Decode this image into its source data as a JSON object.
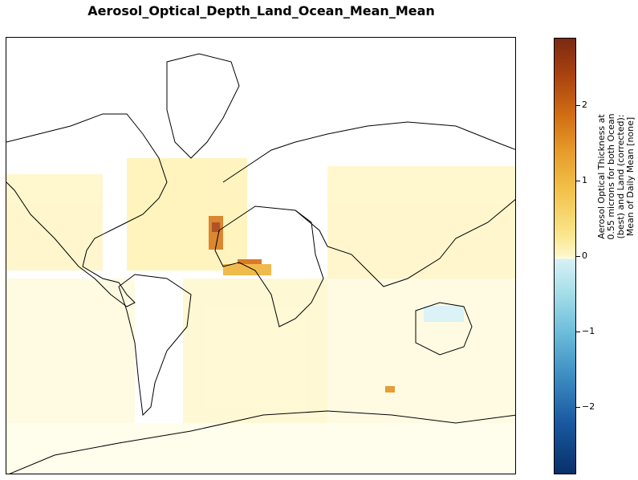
{
  "title": "Aerosol_Optical_Depth_Land_Ocean_Mean_Mean",
  "colorbar": {
    "ticks": [
      {
        "value": 2,
        "label": "2"
      },
      {
        "value": 1,
        "label": "1"
      },
      {
        "value": 0,
        "label": "0"
      },
      {
        "value": -1,
        "label": "−1"
      },
      {
        "value": -2,
        "label": "−2"
      }
    ],
    "range": [
      -2.9,
      2.9
    ],
    "label_lines": [
      "Aerosol Optical Thickness at",
      "0.55 microns for both Ocean",
      "(best)  and Land (corrected):",
      "Mean of Daily Mean [none]"
    ]
  },
  "colors": {
    "high": "#7a2a12",
    "mid_high": "#e79b2a",
    "low_positive": "#fff6c8",
    "low_negative": "#d8f1f6",
    "negative": "#08306b",
    "coastline": "#000000"
  }
}
